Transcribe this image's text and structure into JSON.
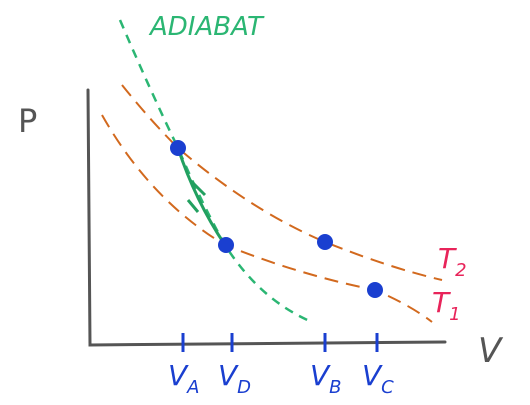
{
  "diagram": {
    "annotation": "ADIABAT",
    "axes": {
      "y_label": "P",
      "x_label": "V"
    },
    "isotherms": [
      {
        "letter": "T",
        "subscript": "2"
      },
      {
        "letter": "T",
        "subscript": "1"
      }
    ],
    "volume_ticks": [
      {
        "letter": "V",
        "subscript": "A"
      },
      {
        "letter": "V",
        "subscript": "D"
      },
      {
        "letter": "V",
        "subscript": "B"
      },
      {
        "letter": "V",
        "subscript": "C"
      }
    ]
  }
}
